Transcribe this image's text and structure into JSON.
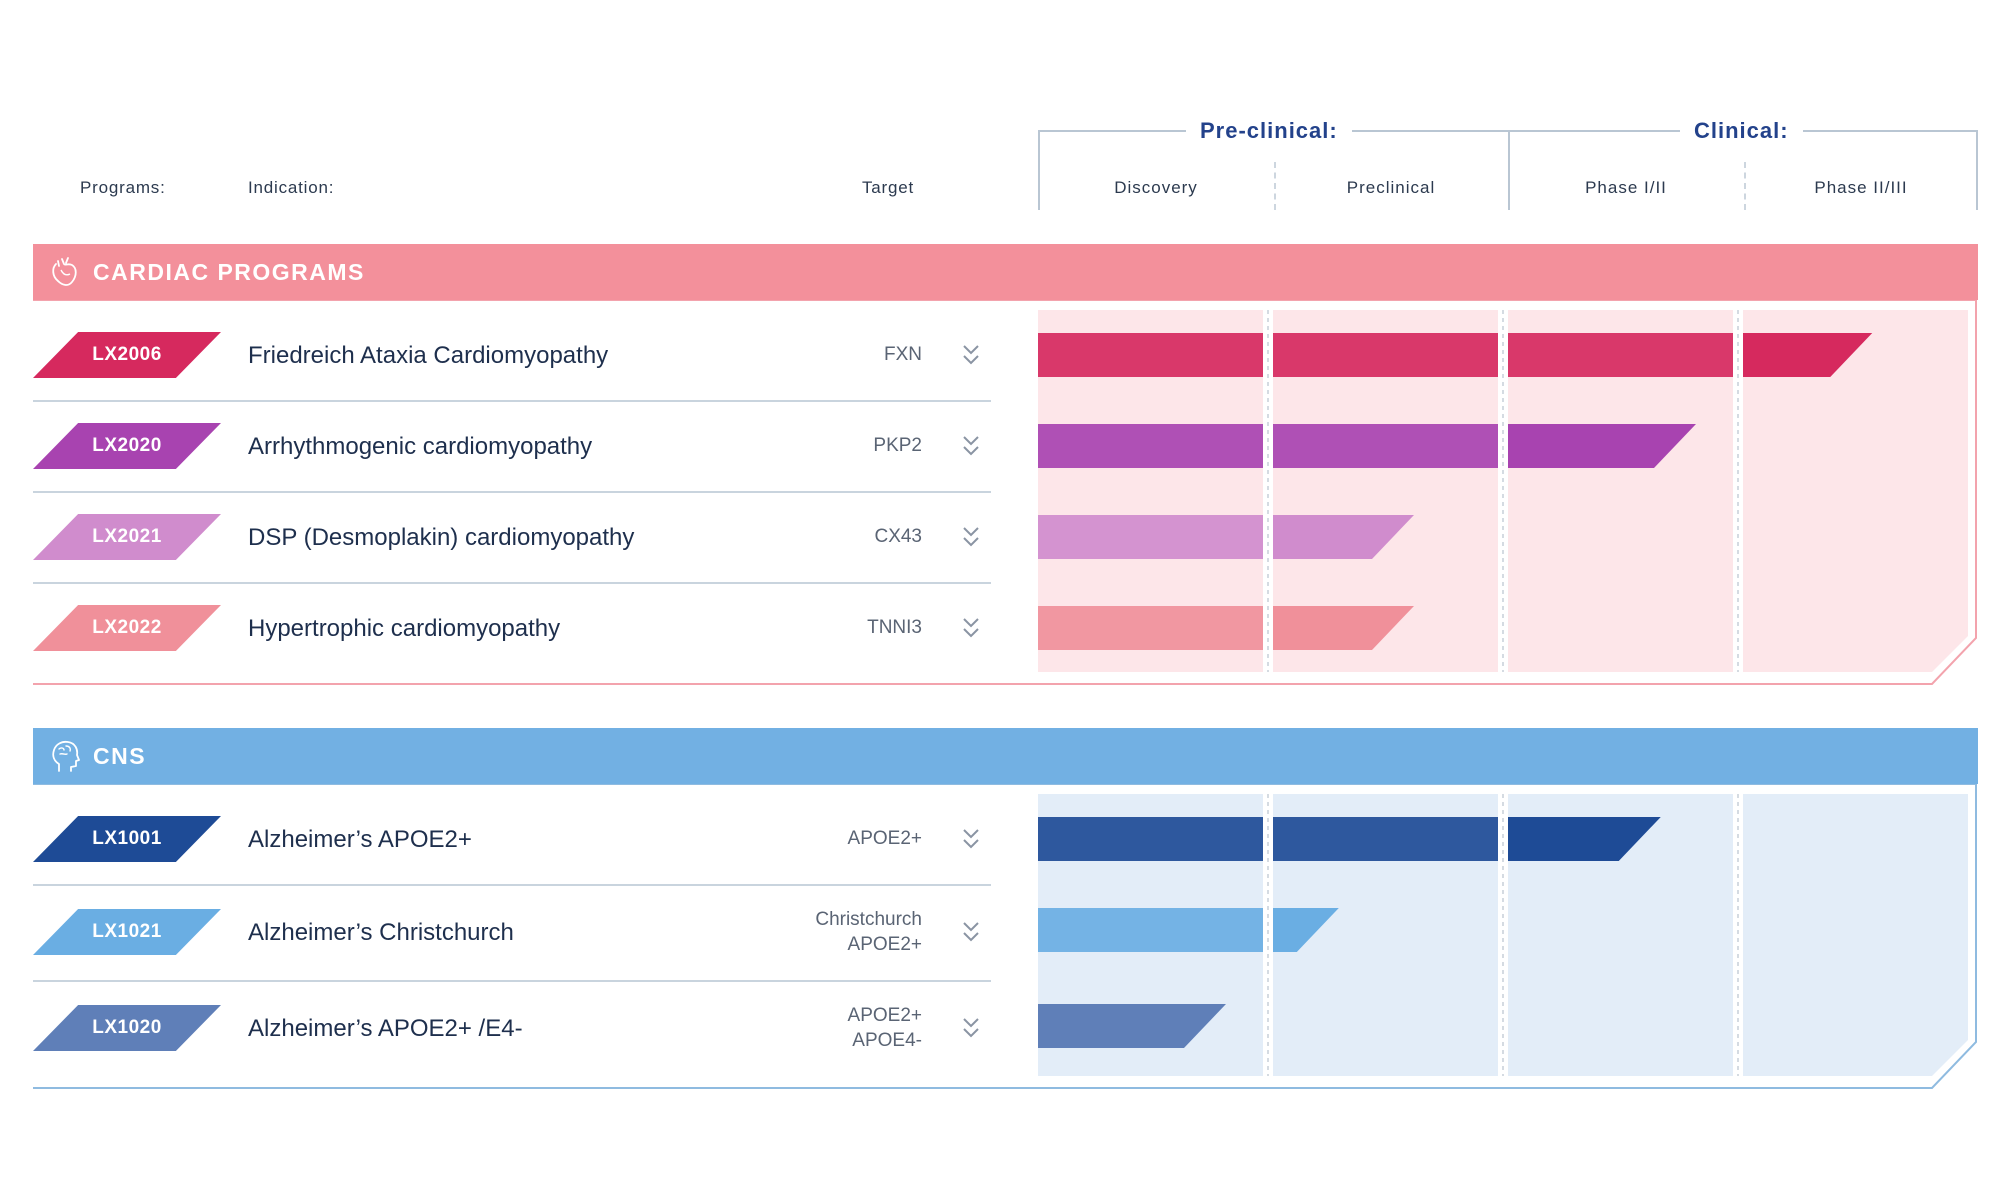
{
  "headers": {
    "programs": "Programs:",
    "indication": "Indication:",
    "target": "Target",
    "preclinical_group": "Pre-clinical:",
    "clinical_group": "Clinical:",
    "phases": [
      "Discovery",
      "Preclinical",
      "Phase I/II",
      "Phase II/III"
    ]
  },
  "sections": [
    {
      "title": "CARDIAC PROGRAMS",
      "icon": "heart-icon",
      "banner_color": "#f3909b",
      "panel_color": "#fde6e9",
      "border_color": "#f3a3ad",
      "rows": [
        {
          "code": "LX2006",
          "indication": "Friedreich Ataxia Cardiomyopathy",
          "target": [
            "FXN"
          ],
          "color": "#d6295e",
          "progress": 3.55
        },
        {
          "code": "LX2020",
          "indication": "Arrhythmogenic cardiomyopathy",
          "target": [
            "PKP2"
          ],
          "color": "#a843b0",
          "progress": 2.8
        },
        {
          "code": "LX2021",
          "indication": "DSP (Desmoplakin) cardiomyopathy",
          "target": [
            "CX43"
          ],
          "color": "#d08ccd",
          "progress": 1.6
        },
        {
          "code": "LX2022",
          "indication": "Hypertrophic cardiomyopathy",
          "target": [
            "TNNI3"
          ],
          "color": "#f0909a",
          "progress": 1.6
        }
      ]
    },
    {
      "title": "CNS",
      "icon": "brain-head-icon",
      "banner_color": "#72b0e3",
      "panel_color": "#e3edf8",
      "border_color": "#8fbbe0",
      "rows": [
        {
          "code": "LX1001",
          "indication": "Alzheimer’s APOE2+",
          "target": [
            "APOE2+"
          ],
          "color": "#1e4b96",
          "progress": 2.65
        },
        {
          "code": "LX1021",
          "indication": "Alzheimer’s Christchurch",
          "target": [
            "Christchurch",
            "APOE2+"
          ],
          "color": "#6aaee3",
          "progress": 1.28
        },
        {
          "code": "LX1020",
          "indication": "Alzheimer’s APOE2+ /E4-",
          "target": [
            "APOE2+",
            "APOE4-"
          ],
          "color": "#5f7fb8",
          "progress": 0.8
        }
      ]
    }
  ],
  "chart_data": {
    "type": "bar",
    "categories": [
      "LX2006",
      "LX2020",
      "LX2021",
      "LX2022",
      "LX1001",
      "LX1021",
      "LX1020"
    ],
    "stages": [
      "Discovery",
      "Preclinical",
      "Phase I/II",
      "Phase II/III"
    ],
    "values": [
      3.55,
      2.8,
      1.6,
      1.6,
      2.65,
      1.28,
      0.8
    ],
    "xlim": [
      0,
      4
    ]
  }
}
